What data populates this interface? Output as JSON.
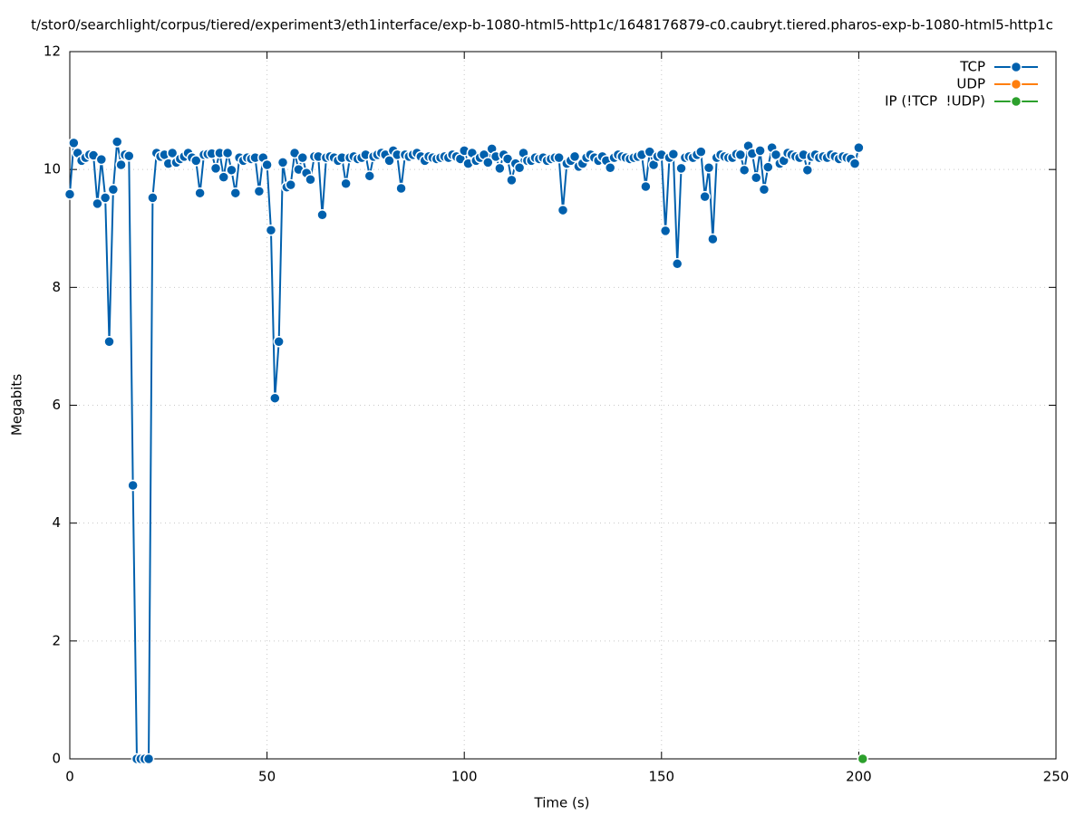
{
  "chart_data": {
    "type": "line",
    "title": "t/stor0/searchlight/corpus/tiered/experiment3/eth1interface/exp-b-1080-html5-http1c/1648176879-c0.caubryt.tiered.pharos-exp-b-1080-html5-http1c",
    "x_label": "Time (s)",
    "y_label": "Megabits",
    "xlim": [
      0,
      250
    ],
    "xticks": [
      0,
      50,
      100,
      150,
      200,
      250
    ],
    "ylim": [
      0,
      12
    ],
    "yticks": [
      0,
      2,
      4,
      6,
      8,
      10,
      12
    ],
    "grid": true,
    "legend": "top-right",
    "series": [
      {
        "name": "TCP",
        "color": "#0060ad",
        "x": [
          0,
          1,
          2,
          3,
          4,
          5,
          6,
          7,
          8,
          9,
          10,
          11,
          12,
          13,
          14,
          15,
          16,
          17,
          18,
          19,
          20,
          21,
          22,
          23,
          24,
          25,
          26,
          27,
          28,
          29,
          30,
          31,
          32,
          33,
          34,
          35,
          36,
          37,
          38,
          39,
          40,
          41,
          42,
          43,
          44,
          45,
          46,
          47,
          48,
          49,
          50,
          51,
          52,
          53,
          54,
          55,
          56,
          57,
          58,
          59,
          60,
          61,
          62,
          63,
          64,
          65,
          66,
          67,
          68,
          69,
          70,
          71,
          72,
          73,
          74,
          75,
          76,
          77,
          78,
          79,
          80,
          81,
          82,
          83,
          84,
          85,
          86,
          87,
          88,
          89,
          90,
          91,
          92,
          93,
          94,
          95,
          96,
          97,
          98,
          99,
          100,
          101,
          102,
          103,
          104,
          105,
          106,
          107,
          108,
          109,
          110,
          111,
          112,
          113,
          114,
          115,
          116,
          117,
          118,
          119,
          120,
          121,
          122,
          123,
          124,
          125,
          126,
          127,
          128,
          129,
          130,
          131,
          132,
          133,
          134,
          135,
          136,
          137,
          138,
          139,
          140,
          141,
          142,
          143,
          144,
          145,
          146,
          147,
          148,
          149,
          150,
          151,
          152,
          153,
          154,
          155,
          156,
          157,
          158,
          159,
          160,
          161,
          162,
          163,
          164,
          165,
          166,
          167,
          168,
          169,
          170,
          171,
          172,
          173,
          174,
          175,
          176,
          177,
          178,
          179,
          180,
          181,
          182,
          183,
          184,
          185,
          186,
          187,
          188,
          189,
          190,
          191,
          192,
          193,
          194,
          195,
          196,
          197,
          198,
          199,
          200
        ],
        "values": [
          9.58,
          10.45,
          10.28,
          10.15,
          10.2,
          10.25,
          10.24,
          9.42,
          10.17,
          9.52,
          7.08,
          9.66,
          10.47,
          10.08,
          10.25,
          10.23,
          4.64,
          0,
          0,
          0,
          0,
          9.52,
          10.28,
          10.22,
          10.25,
          10.1,
          10.28,
          10.12,
          10.18,
          10.22,
          10.28,
          10.2,
          10.15,
          9.6,
          10.25,
          10.26,
          10.27,
          10.02,
          10.28,
          9.87,
          10.28,
          9.99,
          9.6,
          10.2,
          10.15,
          10.2,
          10.18,
          10.2,
          9.63,
          10.2,
          10.08,
          8.97,
          6.12,
          7.08,
          10.12,
          9.7,
          9.74,
          10.28,
          10.0,
          10.2,
          9.94,
          9.83,
          10.22,
          10.22,
          9.23,
          10.2,
          10.22,
          10.2,
          10.15,
          10.2,
          9.76,
          10.2,
          10.22,
          10.18,
          10.2,
          10.25,
          9.89,
          10.22,
          10.25,
          10.28,
          10.25,
          10.15,
          10.32,
          10.25,
          9.68,
          10.25,
          10.22,
          10.25,
          10.28,
          10.22,
          10.15,
          10.22,
          10.2,
          10.18,
          10.2,
          10.22,
          10.2,
          10.25,
          10.22,
          10.18,
          10.32,
          10.1,
          10.28,
          10.15,
          10.2,
          10.25,
          10.12,
          10.35,
          10.22,
          10.02,
          10.25,
          10.18,
          9.82,
          10.1,
          10.03,
          10.28,
          10.15,
          10.15,
          10.2,
          10.18,
          10.2,
          10.15,
          10.18,
          10.2,
          10.2,
          9.31,
          10.1,
          10.15,
          10.22,
          10.05,
          10.1,
          10.2,
          10.25,
          10.2,
          10.15,
          10.22,
          10.15,
          10.03,
          10.2,
          10.25,
          10.22,
          10.2,
          10.18,
          10.2,
          10.22,
          10.25,
          9.71,
          10.3,
          10.08,
          10.22,
          10.25,
          8.96,
          10.2,
          10.26,
          8.4,
          10.02,
          10.2,
          10.22,
          10.2,
          10.25,
          10.3,
          9.54,
          10.03,
          8.82,
          10.2,
          10.25,
          10.22,
          10.2,
          10.2,
          10.26,
          10.25,
          9.99,
          10.4,
          10.27,
          9.86,
          10.32,
          9.66,
          10.04,
          10.37,
          10.25,
          10.1,
          10.15,
          10.28,
          10.25,
          10.22,
          10.2,
          10.25,
          9.99,
          10.22,
          10.25,
          10.2,
          10.22,
          10.2,
          10.25,
          10.22,
          10.18,
          10.22,
          10.2,
          10.18,
          10.1,
          10.37
        ]
      },
      {
        "name": "UDP",
        "color": "#ff7f0e",
        "x": [],
        "values": []
      },
      {
        "name": "IP (!TCP  !UDP)",
        "color": "#2ca02c",
        "x": [
          201
        ],
        "values": [
          0
        ]
      }
    ]
  }
}
